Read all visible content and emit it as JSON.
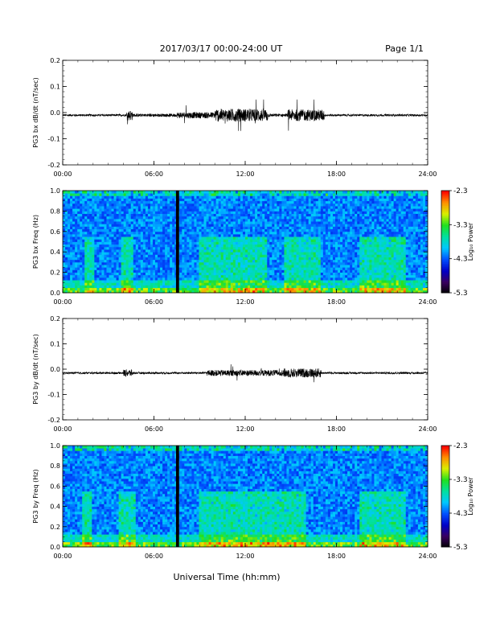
{
  "header": {
    "title": "2017/03/17  00:00-24:00 UT",
    "page": "Page 1/1"
  },
  "x_axis_label": "Universal Time (hh:mm)",
  "colors": {
    "trace": "#000000",
    "colormap": [
      "#000000",
      "#3a0060",
      "#0000c8",
      "#0050ff",
      "#00c8ff",
      "#00e0a0",
      "#20e020",
      "#d8f000",
      "#ff9000",
      "#ff0000"
    ]
  },
  "chart_data": [
    {
      "id": "bx_waveform",
      "type": "line",
      "ylabel": "PG3 bx dB/dt (nT/sec)",
      "xlim": [
        0,
        24
      ],
      "ylim": [
        -0.2,
        0.2
      ],
      "x_ticks": [
        "00:00",
        "06:00",
        "12:00",
        "18:00",
        "24:00"
      ],
      "y_ticks": [
        "0.2",
        "0.1",
        "0.0",
        "-0.1",
        "-0.2"
      ],
      "baseline": -0.01,
      "activity": [
        {
          "t": [
            0,
            4.2
          ],
          "amp": 0.004
        },
        {
          "t": [
            4.2,
            4.6
          ],
          "amp": 0.02
        },
        {
          "t": [
            4.6,
            7.5
          ],
          "amp": 0.006
        },
        {
          "t": [
            7.5,
            10.0
          ],
          "amp": 0.012
        },
        {
          "t": [
            10.0,
            13.5
          ],
          "amp": 0.025
        },
        {
          "t": [
            13.5,
            14.8
          ],
          "amp": 0.006
        },
        {
          "t": [
            14.8,
            17.2
          ],
          "amp": 0.022
        },
        {
          "t": [
            17.2,
            24
          ],
          "amp": 0.004
        }
      ],
      "range": [
        -0.07,
        0.05
      ]
    },
    {
      "id": "bx_spectrogram",
      "type": "heatmap",
      "ylabel": "PG3 bx Freq (Hz)",
      "colorbar_label": "Log₁₀ Power",
      "xlim": [
        0,
        24
      ],
      "ylim": [
        0.0,
        1.0
      ],
      "clim": [
        -5.3,
        -2.3
      ],
      "x_ticks": [
        "00:00",
        "06:00",
        "12:00",
        "18:00",
        "24:00"
      ],
      "y_ticks": [
        "1.0",
        "0.8",
        "0.6",
        "0.4",
        "0.2",
        "0.0"
      ],
      "colorbar_ticks": [
        "-2.3",
        "-3.3",
        "-4.3",
        "-5.3"
      ],
      "data_gap_hours": [
        7.45,
        7.65
      ],
      "enhanced_intervals": [
        [
          1.5,
          2.0
        ],
        [
          3.8,
          4.7
        ],
        [
          9.0,
          13.5
        ],
        [
          14.5,
          17.0
        ],
        [
          19.5,
          22.5
        ]
      ]
    },
    {
      "id": "by_waveform",
      "type": "line",
      "ylabel": "PG3 by dB/dt (nT/sec)",
      "xlim": [
        0,
        24
      ],
      "ylim": [
        -0.2,
        0.2
      ],
      "x_ticks": [
        "00:00",
        "06:00",
        "12:00",
        "18:00",
        "24:00"
      ],
      "y_ticks": [
        "0.2",
        "0.1",
        "0.0",
        "-0.1",
        "-0.2"
      ],
      "baseline": -0.015,
      "activity": [
        {
          "t": [
            0,
            4.0
          ],
          "amp": 0.004
        },
        {
          "t": [
            4.0,
            4.6
          ],
          "amp": 0.014
        },
        {
          "t": [
            4.6,
            9.5
          ],
          "amp": 0.004
        },
        {
          "t": [
            9.5,
            14.5
          ],
          "amp": 0.012
        },
        {
          "t": [
            14.5,
            17.0
          ],
          "amp": 0.018
        },
        {
          "t": [
            17.0,
            24
          ],
          "amp": 0.004
        }
      ],
      "range": [
        -0.06,
        0.03
      ]
    },
    {
      "id": "by_spectrogram",
      "type": "heatmap",
      "ylabel": "PG3 by Freq (Hz)",
      "colorbar_label": "Log₁₀ Power",
      "xlim": [
        0,
        24
      ],
      "ylim": [
        0.0,
        1.0
      ],
      "clim": [
        -5.3,
        -2.3
      ],
      "x_ticks": [
        "00:00",
        "06:00",
        "12:00",
        "18:00",
        "24:00"
      ],
      "y_ticks": [
        "1.0",
        "0.8",
        "0.6",
        "0.4",
        "0.2",
        "0.0"
      ],
      "colorbar_ticks": [
        "-2.3",
        "-3.3",
        "-4.3",
        "-5.3"
      ],
      "data_gap_hours": [
        7.45,
        7.65
      ],
      "enhanced_intervals": [
        [
          1.3,
          1.9
        ],
        [
          3.7,
          4.8
        ],
        [
          9.0,
          13.0
        ],
        [
          13.0,
          16.0
        ],
        [
          19.5,
          22.5
        ]
      ]
    }
  ]
}
